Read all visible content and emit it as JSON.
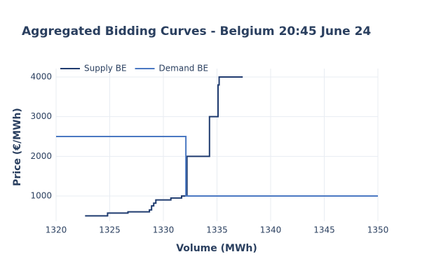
{
  "chart_data": {
    "type": "line",
    "line_shape": "hv",
    "title": "Aggregated Bidding Curves - Belgium 20:45 June 24",
    "x_label": "Volume (MWh)",
    "y_label": "Price (€/MWh)",
    "series": [
      {
        "name": "Supply BE",
        "color": "#1f3b6f",
        "x": [
          1322.7,
          1324.8,
          1326.7,
          1328.7,
          1328.9,
          1329.1,
          1329.3,
          1330.7,
          1331.7,
          1332.2,
          1334.3,
          1335.1,
          1335.2,
          1337.4
        ],
        "values": [
          500,
          570,
          600,
          650,
          750,
          820,
          900,
          950,
          1000,
          2000,
          3000,
          3800,
          4000,
          4000
        ]
      },
      {
        "name": "Demand BE",
        "color": "#4a78c2",
        "x": [
          1320,
          1332.1,
          1350
        ],
        "values": [
          2500,
          1000,
          1000
        ]
      }
    ],
    "xlim": [
      1320,
      1350
    ],
    "xticks": [
      1320,
      1325,
      1330,
      1335,
      1340,
      1345,
      1350
    ],
    "ylim": [
      365,
      4212
    ],
    "yticks": [
      1000,
      2000,
      3000,
      4000
    ],
    "grid": true,
    "legend": "top-left"
  }
}
